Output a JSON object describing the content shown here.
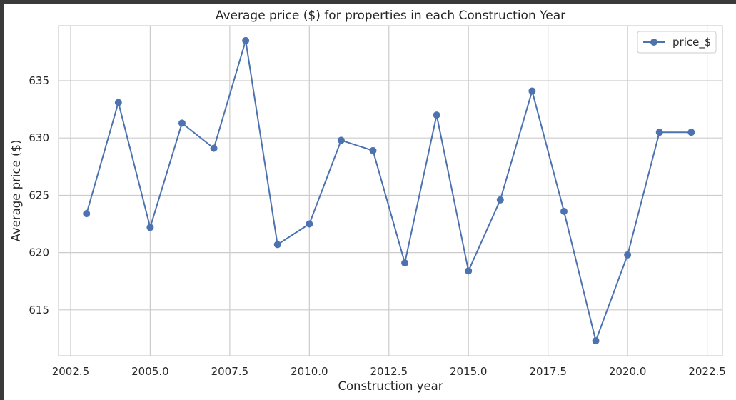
{
  "chart_data": {
    "type": "line",
    "title": "Average price ($) for properties in each Construction Year",
    "xlabel": "Construction year",
    "ylabel": "Average price ($)",
    "xlim": [
      2002.12,
      2022.98
    ],
    "ylim": [
      611.0,
      639.8
    ],
    "x_ticks": [
      2002.5,
      2005.0,
      2007.5,
      2010.0,
      2012.5,
      2015.0,
      2017.5,
      2020.0,
      2022.5
    ],
    "x_tick_labels": [
      "2002.5",
      "2005.0",
      "2007.5",
      "2010.0",
      "2012.5",
      "2015.0",
      "2017.5",
      "2020.0",
      "2022.5"
    ],
    "y_ticks": [
      615,
      620,
      625,
      630,
      635
    ],
    "y_tick_labels": [
      "615",
      "620",
      "625",
      "630",
      "635"
    ],
    "grid": true,
    "legend_position": "top-right",
    "series": [
      {
        "name": "price_$",
        "color": "#4c72b0",
        "marker": "circle",
        "x": [
          2003,
          2004,
          2005,
          2006,
          2007,
          2008,
          2009,
          2010,
          2011,
          2012,
          2013,
          2014,
          2015,
          2016,
          2017,
          2018,
          2019,
          2020,
          2021,
          2022
        ],
        "y": [
          623.4,
          633.1,
          622.2,
          631.3,
          629.1,
          638.5,
          620.7,
          622.5,
          629.8,
          628.9,
          619.1,
          632.0,
          618.4,
          624.6,
          634.1,
          623.6,
          612.3,
          619.8,
          630.5,
          630.5
        ]
      }
    ]
  }
}
